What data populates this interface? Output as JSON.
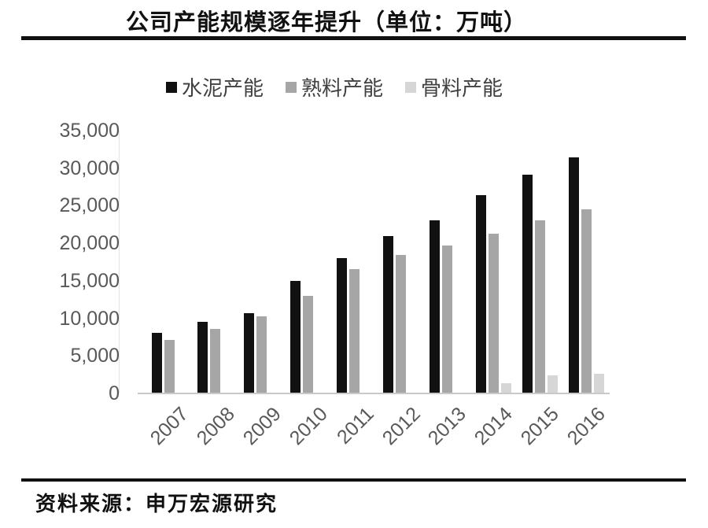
{
  "chart_data": {
    "type": "bar",
    "title": "公司产能规模逐年提升（单位：万吨）",
    "source_note": "资料来源：申万宏源研究",
    "categories": [
      "2007",
      "2008",
      "2009",
      "2010",
      "2011",
      "2012",
      "2013",
      "2014",
      "2015",
      "2016"
    ],
    "series": [
      {
        "key": "cement",
        "name": "水泥产能",
        "color": "#111111",
        "values": [
          8000,
          9400,
          10600,
          14900,
          17900,
          20900,
          23000,
          26300,
          29000,
          31300
        ]
      },
      {
        "key": "clinker",
        "name": "熟料产能",
        "color": "#a6a6a6",
        "values": [
          7000,
          8500,
          10200,
          12900,
          16400,
          18300,
          19600,
          21200,
          22900,
          24400
        ]
      },
      {
        "key": "aggregate",
        "name": "骨料产能",
        "color": "#d6d6d6",
        "values": [
          0,
          0,
          0,
          0,
          0,
          0,
          0,
          1300,
          2300,
          2500
        ]
      }
    ],
    "ylim": [
      0,
      35000
    ],
    "yticks": [
      {
        "v": 0,
        "label": "0"
      },
      {
        "v": 5000,
        "label": "5,000"
      },
      {
        "v": 10000,
        "label": "10,000"
      },
      {
        "v": 15000,
        "label": "15,000"
      },
      {
        "v": 20000,
        "label": "20,000"
      },
      {
        "v": 25000,
        "label": "25,000"
      },
      {
        "v": 30000,
        "label": "30,000"
      },
      {
        "v": 35000,
        "label": "35,000"
      }
    ],
    "grid": false,
    "legend_position": "top",
    "colors": {
      "axis_text": "#595959",
      "rule": "#111111",
      "baseline": "#c9c9c9"
    }
  }
}
